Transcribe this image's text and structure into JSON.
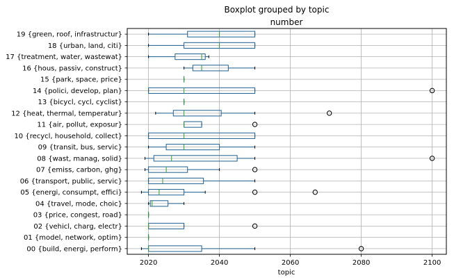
{
  "chart_data": {
    "type": "boxplot",
    "title": "Boxplot grouped by topic",
    "subtitle": "number",
    "xlabel": "topic",
    "xlim": [
      2014,
      2104
    ],
    "xticks": [
      2020,
      2040,
      2060,
      2080,
      2100
    ],
    "grid": true,
    "colors": {
      "box": "#1f5f91",
      "median": "#2ca02c",
      "grid": "#b0b0b0",
      "axis": "#000000"
    },
    "categories": [
      {
        "label": "00 {build, energi, perform}",
        "whislo": 2018,
        "q1": 2020,
        "med": 2020,
        "q3": 2035,
        "whishi": 2050,
        "fliers": [
          2080
        ]
      },
      {
        "label": "01 {model, network, optim}",
        "whislo": 2020,
        "q1": 2020,
        "med": 2020,
        "q3": 2020,
        "whishi": 2020,
        "fliers": []
      },
      {
        "label": "02 {vehicl, charg, electr}",
        "whislo": 2020,
        "q1": 2020,
        "med": 2020,
        "q3": 2030,
        "whishi": 2030,
        "fliers": [
          2050
        ]
      },
      {
        "label": "03 {price, congest, road}",
        "whislo": 2020,
        "q1": 2020,
        "med": 2020,
        "q3": 2020,
        "whishi": 2020,
        "fliers": []
      },
      {
        "label": "04 {travel, mode, choic}",
        "whislo": 2020,
        "q1": 2020.5,
        "med": 2021,
        "q3": 2025.5,
        "whishi": 2030,
        "fliers": []
      },
      {
        "label": "05 {energi, consumpt, effici}",
        "whislo": 2018,
        "q1": 2020,
        "med": 2023,
        "q3": 2030,
        "whishi": 2036,
        "fliers": [
          2050,
          2067
        ]
      },
      {
        "label": "06 {transport, public, servic}",
        "whislo": 2020,
        "q1": 2020,
        "med": 2024,
        "q3": 2035.5,
        "whishi": 2050,
        "fliers": []
      },
      {
        "label": "07 {emiss, carbon, ghg}",
        "whislo": 2019,
        "q1": 2020,
        "med": 2025,
        "q3": 2031,
        "whishi": 2040,
        "fliers": [
          2050
        ]
      },
      {
        "label": "08 {wast, manag, solid}",
        "whislo": 2019,
        "q1": 2021.5,
        "med": 2026.5,
        "q3": 2045,
        "whishi": 2050,
        "fliers": [
          2100
        ]
      },
      {
        "label": "09 {transit, bus, servic}",
        "whislo": 2020,
        "q1": 2025,
        "med": 2030,
        "q3": 2040,
        "whishi": 2050,
        "fliers": []
      },
      {
        "label": "10 {recycl, household, collect}",
        "whislo": 2020,
        "q1": 2020,
        "med": 2030,
        "q3": 2050,
        "whishi": 2050,
        "fliers": []
      },
      {
        "label": "11 {air, pollut, exposur}",
        "whislo": 2030,
        "q1": 2030,
        "med": 2030,
        "q3": 2035,
        "whishi": 2035,
        "fliers": [
          2050
        ]
      },
      {
        "label": "12 {heat, thermal, temperatur}",
        "whislo": 2022,
        "q1": 2027,
        "med": 2030,
        "q3": 2040.5,
        "whishi": 2050,
        "fliers": [
          2071
        ]
      },
      {
        "label": "13 {bicycl, cycl, cyclist}",
        "whislo": 2030,
        "q1": 2030,
        "med": 2030,
        "q3": 2030,
        "whishi": 2030,
        "fliers": []
      },
      {
        "label": "14 {polici, develop, plan}",
        "whislo": 2020,
        "q1": 2020,
        "med": 2030,
        "q3": 2050,
        "whishi": 2050,
        "fliers": [
          2100
        ]
      },
      {
        "label": "15 {park, space, price}",
        "whislo": 2030,
        "q1": 2030,
        "med": 2030,
        "q3": 2030,
        "whishi": 2030,
        "fliers": []
      },
      {
        "label": "16 {hous, passiv, construct}",
        "whislo": 2030,
        "q1": 2032.5,
        "med": 2035,
        "q3": 2042.5,
        "whishi": 2050,
        "fliers": []
      },
      {
        "label": "17 {treatment, water, wastewat}",
        "whislo": 2020,
        "q1": 2027.5,
        "med": 2035,
        "q3": 2036,
        "whishi": 2037,
        "fliers": []
      },
      {
        "label": "18 {urban, land, citi}",
        "whislo": 2020,
        "q1": 2030,
        "med": 2040,
        "q3": 2050,
        "whishi": 2050,
        "fliers": []
      },
      {
        "label": "19 {green, roof, infrastructur}",
        "whislo": 2020,
        "q1": 2031,
        "med": 2040,
        "q3": 2050,
        "whishi": 2050,
        "fliers": []
      }
    ]
  }
}
